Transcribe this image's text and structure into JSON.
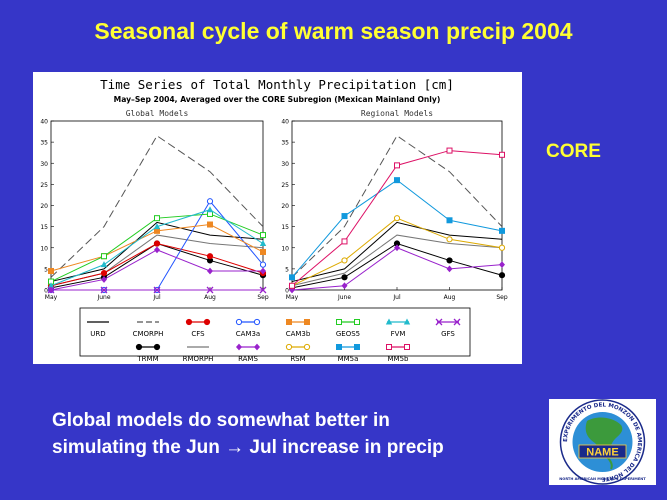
{
  "slide": {
    "title": "Seasonal cycle of warm season precip 2004",
    "side_label": "CORE",
    "caption_line1": "Global models do somewhat better in",
    "caption_line2": "simulating the Jun → Jul increase in precip"
  },
  "logo": {
    "ring_text": "EXPERIMENTO DEL MONZON DE AMERICA DEL NORTE",
    "name": "NAME",
    "sub": "NORTH AMERICAN MONSOON EXPERIMENT",
    "colors": {
      "ocean": "#2d8fd6",
      "land": "#3c9a3c",
      "banner": "#1a2a8a"
    }
  },
  "chart_data": {
    "type": "line",
    "title": "Time Series of Total Monthly Precipitation [cm]",
    "subtitle": "May–Sep 2004, Averaged over the CORE Subregion (Mexican Mainland Only)",
    "categories": [
      "May",
      "June",
      "Jul",
      "Aug",
      "Sep"
    ],
    "ylim": [
      0,
      40
    ],
    "yticks": [
      0,
      5,
      10,
      15,
      20,
      25,
      30,
      35,
      40
    ],
    "grid": false,
    "legend_placement": "bottom",
    "legend": [
      {
        "name": "URD",
        "color": "#000000",
        "dash": "solid",
        "marker": "none"
      },
      {
        "name": "CMORPH",
        "color": "#000000",
        "dash": "dash",
        "marker": "none"
      },
      {
        "name": "CFS",
        "color": "#dd0000",
        "dash": "solid",
        "marker": "circle-filled"
      },
      {
        "name": "CAM3a",
        "color": "#2255ff",
        "dash": "solid",
        "marker": "circle-open"
      },
      {
        "name": "CAM3b",
        "color": "#ee8822",
        "dash": "solid",
        "marker": "square-filled"
      },
      {
        "name": "GEOS5",
        "color": "#22cc22",
        "dash": "solid",
        "marker": "square-open"
      },
      {
        "name": "FVM",
        "color": "#22bbcc",
        "dash": "solid",
        "marker": "triangle"
      },
      {
        "name": "GFS",
        "color": "#9922cc",
        "dash": "solid",
        "marker": "cross"
      },
      {
        "name": "TRMM",
        "color": "#000000",
        "dash": "solid",
        "marker": "circle-filled"
      },
      {
        "name": "RMORPH",
        "color": "#777777",
        "dash": "solid",
        "marker": "none"
      },
      {
        "name": "RAMS",
        "color": "#9922cc",
        "dash": "solid",
        "marker": "diamond-filled"
      },
      {
        "name": "RSM",
        "color": "#ddaa00",
        "dash": "solid",
        "marker": "circle-open"
      },
      {
        "name": "MM5a",
        "color": "#1199dd",
        "dash": "solid",
        "marker": "square-filled"
      },
      {
        "name": "MM5b",
        "color": "#dd1166",
        "dash": "solid",
        "marker": "square-open"
      }
    ],
    "panels": [
      {
        "title": "Global Models",
        "series": [
          {
            "name": "URD",
            "values": [
              2,
              5,
              16,
              13,
              12
            ]
          },
          {
            "name": "CMORPH",
            "values": [
              3,
              15,
              36.5,
              28,
              15
            ]
          },
          {
            "name": "TRMM",
            "values": [
              0.5,
              3,
              11,
              7,
              3.5
            ]
          },
          {
            "name": "RMORPH",
            "values": [
              1,
              4,
              13,
              11,
              10
            ]
          },
          {
            "name": "CFS",
            "values": [
              1,
              4,
              11,
              8,
              4
            ]
          },
          {
            "name": "CAM3a",
            "values": [
              0,
              0,
              0,
              21,
              6
            ]
          },
          {
            "name": "CAM3b",
            "values": [
              4.5,
              8,
              14,
              15.5,
              9
            ]
          },
          {
            "name": "GEOS5",
            "values": [
              2,
              8,
              17,
              18,
              13
            ]
          },
          {
            "name": "FVM",
            "values": [
              1,
              6,
              15,
              19,
              11
            ]
          },
          {
            "name": "GFS",
            "values": [
              0,
              0,
              0,
              0,
              0
            ]
          },
          {
            "name": "RAMS",
            "values": [
              0,
              2.5,
              9.5,
              4.5,
              4.5
            ]
          }
        ]
      },
      {
        "title": "Regional Models",
        "series": [
          {
            "name": "URD",
            "values": [
              2,
              5,
              16,
              13,
              12
            ]
          },
          {
            "name": "CMORPH",
            "values": [
              3,
              15,
              36.5,
              28,
              15
            ]
          },
          {
            "name": "TRMM",
            "values": [
              0.5,
              3,
              11,
              7,
              3.5
            ]
          },
          {
            "name": "RMORPH",
            "values": [
              1,
              4,
              13,
              11,
              10
            ]
          },
          {
            "name": "RAMS",
            "values": [
              0,
              1,
              10,
              5,
              6
            ]
          },
          {
            "name": "RSM",
            "values": [
              1,
              7,
              17,
              12,
              10
            ]
          },
          {
            "name": "MM5a",
            "values": [
              3,
              17.5,
              26,
              16.5,
              14
            ]
          },
          {
            "name": "MM5b",
            "values": [
              1,
              11.5,
              29.5,
              33,
              32
            ]
          }
        ]
      }
    ]
  }
}
